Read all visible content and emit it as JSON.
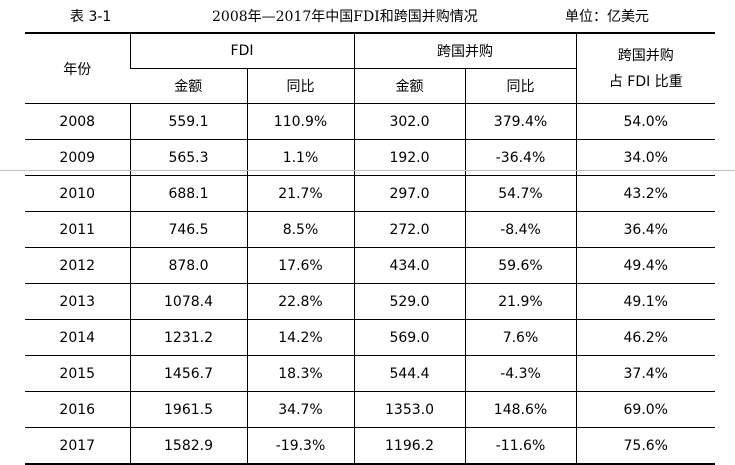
{
  "caption": {
    "number": "表 3-1",
    "title": "2008年—2017年中国FDI和跨国并购情况",
    "unit": "单位：亿美元"
  },
  "header": {
    "year": "年份",
    "fdi": "FDI",
    "ma": "跨国并购",
    "share_line1": "跨国并购",
    "share_line2": "占 FDI 比重",
    "amount": "金额",
    "yoy": "同比"
  },
  "rows": [
    [
      "2008",
      "559.1",
      "110.9%",
      "302.0",
      "379.4%",
      "54.0%"
    ],
    [
      "2009",
      "565.3",
      "1.1%",
      "192.0",
      "-36.4%",
      "34.0%"
    ],
    [
      "2010",
      "688.1",
      "21.7%",
      "297.0",
      "54.7%",
      "43.2%"
    ],
    [
      "2011",
      "746.5",
      "8.5%",
      "272.0",
      "-8.4%",
      "36.4%"
    ],
    [
      "2012",
      "878.0",
      "17.6%",
      "434.0",
      "59.6%",
      "49.4%"
    ],
    [
      "2013",
      "1078.4",
      "22.8%",
      "529.0",
      "21.9%",
      "49.1%"
    ],
    [
      "2014",
      "1231.2",
      "14.2%",
      "569.0",
      "7.6%",
      "46.2%"
    ],
    [
      "2015",
      "1456.7",
      "18.3%",
      "544.4",
      "-4.3%",
      "37.4%"
    ],
    [
      "2016",
      "1961.5",
      "34.7%",
      "1353.0",
      "148.6%",
      "69.0%"
    ],
    [
      "2017",
      "1582.9",
      "-19.3%",
      "1196.2",
      "-11.6%",
      "75.6%"
    ]
  ]
}
